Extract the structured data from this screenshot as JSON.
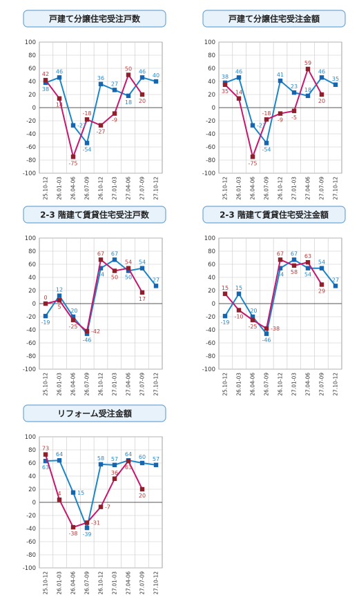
{
  "colors": {
    "series_red": "#c8156d",
    "series_blue": "#1a86c8",
    "label_red": "#b73a3a",
    "label_blue": "#2a88c6",
    "marker_red": "#8f1f2a",
    "marker_blue": "#1565b0",
    "title_bg": "#e8f2fb",
    "title_border": "#6da7d6",
    "grid": "#c8c8c8"
  },
  "chart_data": [
    {
      "type": "line",
      "title": "戸建て分譲住宅受注戸数",
      "categories": [
        "H25.10-12",
        "H26.01-03",
        "H26.04-06",
        "H26.07-09",
        "H26.10-12",
        "H27.01-03",
        "H27.04-06",
        "H27.07-09",
        "H27.10-12"
      ],
      "ylim": [
        -100,
        100
      ],
      "yticks": [
        "100",
        "80",
        "60",
        "40",
        "20",
        "0",
        "-20",
        "-40",
        "-60",
        "-80",
        "-100"
      ],
      "series": [
        {
          "color_key": "red",
          "values": [
            42,
            14,
            -75,
            -18,
            -27,
            -9,
            50,
            20,
            null
          ],
          "labels": [
            "42",
            "14",
            "-75",
            "-18",
            "-27",
            "-9",
            "50",
            "20",
            ""
          ],
          "label_pos": [
            "above",
            "below",
            "below",
            "above",
            "below",
            "below",
            "above",
            "below",
            ""
          ]
        },
        {
          "color_key": "blue",
          "values": [
            38,
            46,
            -27,
            -54,
            36,
            27,
            18,
            46,
            40
          ],
          "labels": [
            "38",
            "46",
            "-27",
            "-54",
            "36",
            "27",
            "18",
            "46",
            "40"
          ],
          "label_pos": [
            "below",
            "above",
            "right",
            "below",
            "above",
            "above",
            "below",
            "above",
            "above"
          ]
        }
      ]
    },
    {
      "type": "line",
      "title": "戸建て分譲住宅受注金額",
      "categories": [
        "H25.10-12",
        "H26.01-03",
        "H26.04-06",
        "H26.07-09",
        "H26.10-12",
        "H27.01-03",
        "H27.04-06",
        "H27.07-09",
        "H27.10-12"
      ],
      "ylim": [
        -100,
        100
      ],
      "yticks": [
        "100",
        "80",
        "60",
        "40",
        "20",
        "0",
        "-20",
        "-40",
        "-60",
        "-80",
        "-100"
      ],
      "series": [
        {
          "color_key": "red",
          "values": [
            35,
            14,
            -75,
            -18,
            -9,
            -5,
            59,
            20,
            null
          ],
          "labels": [
            "35",
            "14",
            "-75",
            "-18",
            "-9",
            "-5",
            "59",
            "20",
            ""
          ],
          "label_pos": [
            "below",
            "above",
            "below",
            "above",
            "below",
            "below",
            "above",
            "below",
            ""
          ]
        },
        {
          "color_key": "blue",
          "values": [
            38,
            46,
            -27,
            -54,
            41,
            23,
            18,
            46,
            35
          ],
          "labels": [
            "38",
            "46",
            "-27",
            "-54",
            "41",
            "23",
            "18",
            "46",
            "35"
          ],
          "label_pos": [
            "above",
            "above",
            "right",
            "below",
            "above",
            "above",
            "above",
            "above",
            "above"
          ]
        }
      ]
    },
    {
      "type": "line",
      "title": "2-3 階建て賃貸住宅受注戸数",
      "categories": [
        "H25.10-12",
        "H26.01-03",
        "H26.04-06",
        "H26.07-09",
        "H26.10-12",
        "H27.01-03",
        "H27.04-06",
        "H27.07-09",
        "H27.10-12"
      ],
      "ylim": [
        -100,
        100
      ],
      "yticks": [
        "100",
        "80",
        "60",
        "40",
        "20",
        "0",
        "-20",
        "-40",
        "-60",
        "-80",
        "-100"
      ],
      "series": [
        {
          "color_key": "red",
          "values": [
            0,
            5,
            -25,
            -42,
            67,
            50,
            54,
            17,
            null
          ],
          "labels": [
            "0",
            "5",
            "-25",
            "-42",
            "67",
            "50",
            "54",
            "17",
            ""
          ],
          "label_pos": [
            "above",
            "below",
            "below",
            "right",
            "above",
            "below",
            "above",
            "below",
            ""
          ]
        },
        {
          "color_key": "blue",
          "values": [
            -19,
            12,
            -20,
            -46,
            54,
            67,
            50,
            54,
            27
          ],
          "labels": [
            "-19",
            "12",
            "-20",
            "-46",
            "54",
            "67",
            "50",
            "54",
            "27"
          ],
          "label_pos": [
            "below",
            "above",
            "above",
            "below",
            "below",
            "above",
            "below",
            "above",
            "above"
          ]
        }
      ]
    },
    {
      "type": "line",
      "title": "2-3 階建て賃貸住宅受注金額",
      "categories": [
        "H25.10-12",
        "H26.01-03",
        "H26.04-06",
        "H26.07-09",
        "H26.10-12",
        "H27.01-03",
        "H27.04-06",
        "H27.07-09",
        "H27.10-12"
      ],
      "ylim": [
        -100,
        100
      ],
      "yticks": [
        "100",
        "80",
        "60",
        "40",
        "20",
        "0",
        "-20",
        "-40",
        "-60",
        "-80",
        "-100"
      ],
      "series": [
        {
          "color_key": "red",
          "values": [
            15,
            -10,
            -25,
            -38,
            67,
            58,
            63,
            29,
            null
          ],
          "labels": [
            "15",
            "-10",
            "-25",
            "-38",
            "67",
            "58",
            "63",
            "29",
            ""
          ],
          "label_pos": [
            "above",
            "below",
            "below",
            "right",
            "above",
            "below",
            "above",
            "below",
            ""
          ]
        },
        {
          "color_key": "blue",
          "values": [
            -19,
            15,
            -20,
            -46,
            54,
            67,
            54,
            54,
            27
          ],
          "labels": [
            "-19",
            "15",
            "-20",
            "-46",
            "54",
            "67",
            "54",
            "54",
            "27"
          ],
          "label_pos": [
            "below",
            "above",
            "above",
            "below",
            "below",
            "above",
            "below",
            "above",
            "above"
          ]
        }
      ]
    },
    {
      "type": "line",
      "title": "リフォーム受注金額",
      "categories": [
        "H25.10-12",
        "H26.01-03",
        "H26.04-06",
        "H26.07-09",
        "H26.10-12",
        "H27.01-03",
        "H27.04-06",
        "H27.07-09",
        "H27.10-12"
      ],
      "ylim": [
        -100,
        100
      ],
      "yticks": [
        "100",
        "80",
        "60",
        "40",
        "20",
        "0",
        "-20",
        "-40",
        "-60",
        "-80",
        "-100"
      ],
      "series": [
        {
          "color_key": "red",
          "values": [
            73,
            4,
            -38,
            -31,
            -7,
            36,
            63,
            20,
            null
          ],
          "labels": [
            "73",
            "4",
            "-38",
            "-31",
            "-7",
            "36",
            "63",
            "20",
            ""
          ],
          "label_pos": [
            "above",
            "above",
            "below",
            "right",
            "right",
            "above",
            "below",
            "below",
            ""
          ]
        },
        {
          "color_key": "blue",
          "values": [
            63,
            64,
            15,
            -39,
            58,
            57,
            64,
            60,
            57
          ],
          "labels": [
            "63",
            "64",
            "15",
            "-39",
            "58",
            "57",
            "64",
            "60",
            "57"
          ],
          "label_pos": [
            "below",
            "above",
            "right",
            "below",
            "above",
            "above",
            "above",
            "above",
            "above"
          ]
        }
      ]
    }
  ]
}
